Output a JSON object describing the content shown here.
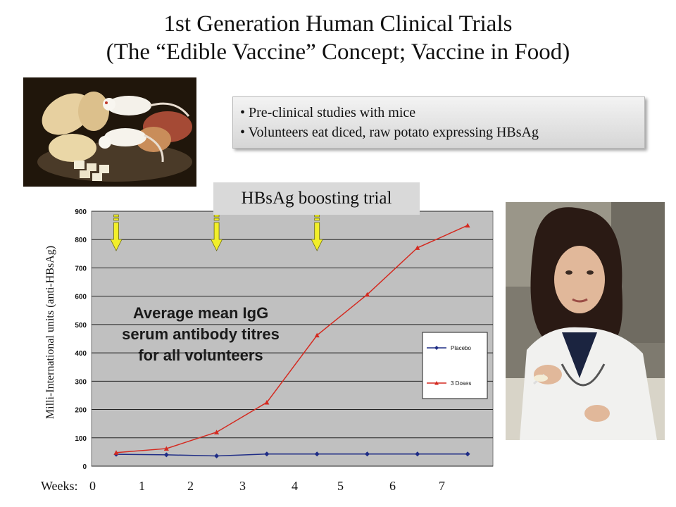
{
  "slide": {
    "title_line1": "1st Generation Human Clinical Trials",
    "title_line2": "(The “Edible Vaccine” Concept; Vaccine in Food)"
  },
  "bullets": [
    "Pre-clinical studies with mice",
    "Volunteers eat diced, raw potato expressing HBsAg"
  ],
  "trial_label": "HBsAg boosting trial",
  "ylabel": "Milli-International units (anti-HBsAg)",
  "weeks_prefix": "Weeks:",
  "weeks": [
    "0",
    "1",
    "2",
    "3",
    "4",
    "5",
    "6",
    "7"
  ],
  "overlay_text": [
    "Average mean IgG",
    "serum antibody titres",
    "for all volunteers"
  ],
  "images": [
    {
      "name": "mice-with-potatoes-photo"
    },
    {
      "name": "volunteer-eating-photo"
    }
  ],
  "chart_data": {
    "type": "line",
    "x": [
      0.5,
      1.5,
      2.5,
      3.5,
      4.5,
      5.5,
      6.5,
      7.5
    ],
    "ylim": [
      0,
      900
    ],
    "yticks": [
      "0",
      "100",
      "200",
      "300",
      "400",
      "500",
      "600",
      "700",
      "800",
      "900"
    ],
    "grid": true,
    "legend_position": "right",
    "dose_arrows_x": [
      0.5,
      2.5,
      4.5
    ],
    "series": [
      {
        "name": "Placebo",
        "color": "#1f2d86",
        "marker": "diamond",
        "values": [
          42,
          40,
          36,
          43,
          43,
          43,
          43,
          43
        ]
      },
      {
        "name": "3 Doses",
        "color": "#d42a20",
        "marker": "triangle",
        "values": [
          48,
          62,
          120,
          225,
          462,
          606,
          771,
          850
        ]
      }
    ]
  }
}
